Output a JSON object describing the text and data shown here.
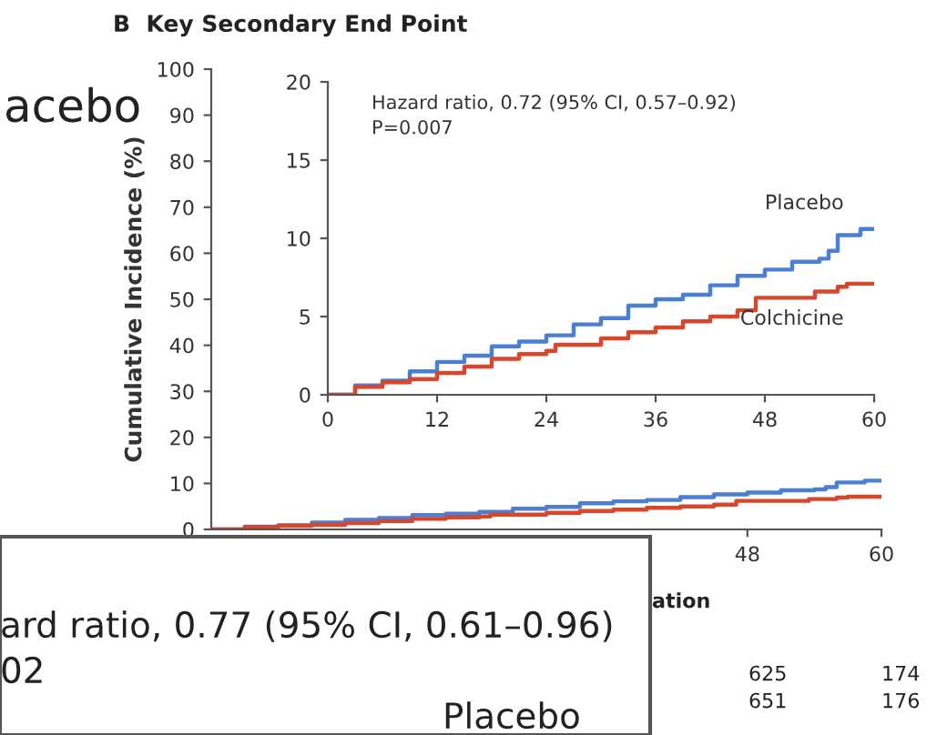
{
  "chart_data": [
    {
      "type": "step",
      "title": "B  Key Secondary End Point",
      "ylabel": "Cumulative Incidence (%)",
      "xlim": [
        0,
        60
      ],
      "xticks": [
        48,
        60
      ],
      "ylim": [
        0,
        100
      ],
      "yticks": [
        0,
        10,
        20,
        30,
        40,
        50,
        60,
        70,
        80,
        90,
        100
      ],
      "grid": false,
      "legend": false,
      "series": [
        {
          "color": "#4a7fd4",
          "x": [
            0,
            3,
            6,
            9,
            12,
            15,
            18,
            21,
            24,
            27,
            30,
            33,
            36,
            39,
            42,
            45,
            48,
            51,
            54,
            55,
            56,
            58,
            58.5,
            60
          ],
          "values": [
            0,
            0.6,
            0.9,
            1.5,
            2.1,
            2.5,
            3.1,
            3.4,
            3.8,
            4.5,
            4.9,
            5.7,
            6.1,
            6.4,
            7.0,
            7.6,
            8.0,
            8.5,
            8.7,
            9.2,
            10.2,
            10.2,
            10.6,
            10.6
          ]
        },
        {
          "color": "#d8472b",
          "x": [
            0,
            3,
            6,
            9,
            12,
            15,
            18,
            21,
            24,
            25,
            30,
            33,
            36,
            39,
            42,
            45,
            47,
            50,
            53,
            53.5,
            56,
            57,
            60
          ],
          "values": [
            0,
            0.5,
            0.8,
            1.0,
            1.4,
            1.8,
            2.3,
            2.6,
            2.8,
            3.2,
            3.6,
            4.0,
            4.3,
            4.7,
            5.0,
            5.4,
            6.2,
            6.2,
            6.2,
            6.6,
            6.9,
            7.1,
            7.1
          ]
        }
      ],
      "annotations": [
        "acebo",
        "ard ratio, 0.77 (95% CI, 0.61–0.96)",
        "02",
        "Placebo",
        "ation",
        "625",
        "174",
        "651",
        "176"
      ]
    },
    {
      "type": "step",
      "xlim": [
        0,
        60
      ],
      "xticks": [
        0,
        12,
        24,
        36,
        48,
        60
      ],
      "ylim": [
        0,
        20
      ],
      "yticks": [
        0,
        5,
        10,
        15,
        20
      ],
      "grid": false,
      "legend": false,
      "series": [
        {
          "name": "Placebo",
          "color": "#4a7fd4",
          "x": [
            0,
            3,
            6,
            9,
            12,
            15,
            18,
            21,
            24,
            27,
            30,
            33,
            36,
            39,
            42,
            45,
            48,
            51,
            54,
            55,
            56,
            58,
            58.5,
            60
          ],
          "values": [
            0,
            0.6,
            0.9,
            1.5,
            2.1,
            2.5,
            3.1,
            3.4,
            3.8,
            4.5,
            4.9,
            5.7,
            6.1,
            6.4,
            7.0,
            7.6,
            8.0,
            8.5,
            8.7,
            9.2,
            10.2,
            10.2,
            10.6,
            10.6
          ]
        },
        {
          "name": "Colchicine",
          "color": "#d8472b",
          "x": [
            0,
            3,
            6,
            9,
            12,
            15,
            18,
            21,
            24,
            25,
            30,
            33,
            36,
            39,
            42,
            45,
            47,
            50,
            53,
            53.5,
            56,
            57,
            60
          ],
          "values": [
            0,
            0.5,
            0.8,
            1.0,
            1.4,
            1.8,
            2.3,
            2.6,
            2.8,
            3.2,
            3.6,
            4.0,
            4.3,
            4.7,
            5.0,
            5.4,
            6.2,
            6.2,
            6.2,
            6.6,
            6.9,
            7.1,
            7.1
          ]
        }
      ],
      "annotations": [
        "Hazard ratio, 0.72 (95% CI, 0.57–0.92)",
        "P=0.007"
      ]
    }
  ]
}
